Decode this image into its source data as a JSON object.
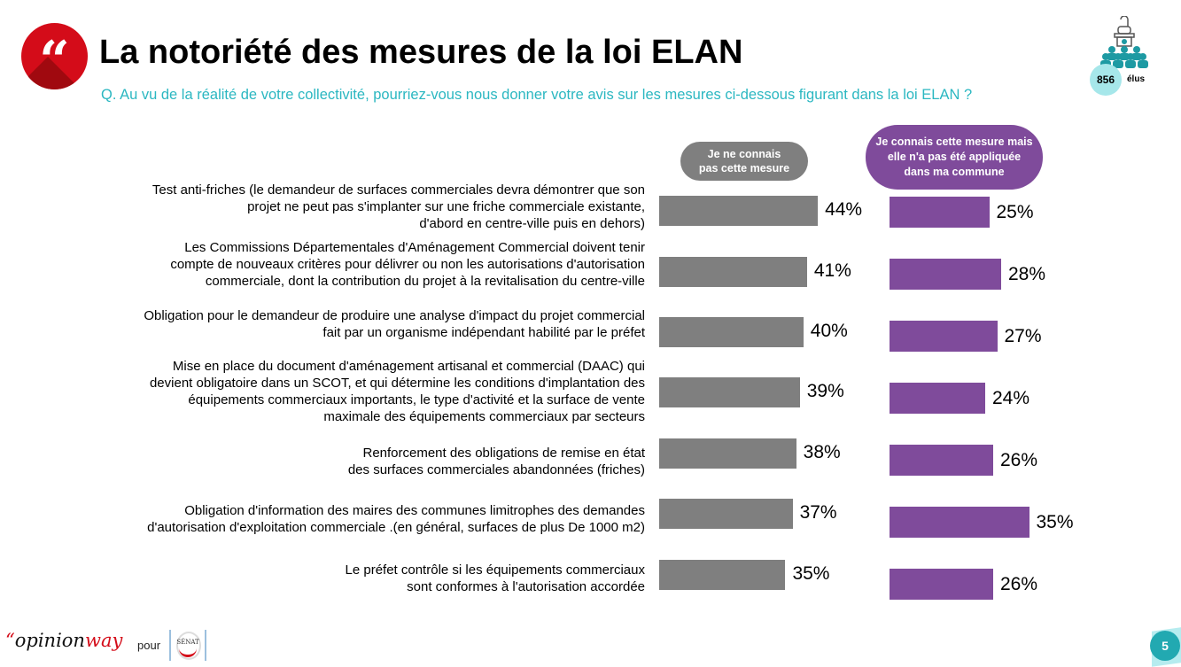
{
  "header": {
    "title": "La notoriété des mesures de la loi ELAN",
    "quote_glyph": "“",
    "subtitle": "Q. Au vu de la réalité de votre collectivité, pourriez-vous nous donner votre avis sur les mesures ci-dessous figurant dans la loi ELAN ?",
    "sample_size": "856",
    "sample_label": "élus"
  },
  "colors": {
    "accent_red": "#d40c19",
    "accent_teal": "#2bb7c1",
    "series_gray": "#7f7f7f",
    "series_purple": "#7f4b9b"
  },
  "chart_data": {
    "type": "bar",
    "orientation": "horizontal",
    "title": "La notoriété des mesures de la loi ELAN",
    "categories": [
      "Test anti-friches (le demandeur de surfaces commerciales devra démontrer que son projet ne peut pas s'implanter sur une friche commerciale existante, d'abord en centre-ville puis en dehors)",
      "Les Commissions Départementales d'Aménagement Commercial doivent tenir compte de nouveaux critères pour délivrer ou non les autorisations d'autorisation commerciale, dont la contribution du projet à la revitalisation du centre-ville",
      "Obligation pour le demandeur de produire une analyse d'impact du projet commercial fait par un organisme indépendant habilité par le préfet",
      "Mise en place du document d'aménagement artisanal et commercial (DAAC) qui devient obligatoire dans un SCOT, et qui détermine les conditions d'implantation des équipements commerciaux importants, le type d'activité et la surface de vente maximale des équipements commerciaux par secteurs",
      "Renforcement des obligations de remise en état des surfaces commerciales abandonnées (friches)",
      "Obligation d'information des maires des communes limitrophes des demandes d'autorisation d'exploitation commerciale .(en général, surfaces de plus De 1000 m2)",
      "Le préfet contrôle si les équipements commerciaux sont conformes à l'autorisation accordée"
    ],
    "category_lines": [
      [
        "Test anti-friches (le demandeur de surfaces commerciales devra démontrer que son",
        "projet ne peut pas s'implanter sur une friche commerciale existante,",
        "d'abord en centre-ville puis en dehors)"
      ],
      [
        "Les Commissions Départementales d'Aménagement Commercial doivent tenir",
        "compte de nouveaux critères pour délivrer ou non les autorisations d'autorisation",
        "commerciale, dont la contribution du projet à la revitalisation du centre-ville"
      ],
      [
        "Obligation pour le demandeur de produire une analyse d'impact du projet commercial",
        "fait par un organisme indépendant habilité par le préfet"
      ],
      [
        "Mise en place du document d'aménagement artisanal et commercial (DAAC) qui",
        "devient obligatoire dans un SCOT, et qui détermine les conditions d'implantation des",
        "équipements commerciaux importants, le type d'activité et la surface de vente",
        "maximale des équipements commerciaux par secteurs"
      ],
      [
        "Renforcement des obligations de remise en état",
        "des surfaces commerciales abandonnées (friches)"
      ],
      [
        "Obligation d'information des maires des communes limitrophes des demandes",
        "d'autorisation d'exploitation commerciale .(en général, surfaces de plus De 1000 m2)"
      ],
      [
        "Le préfet contrôle si les équipements commerciaux",
        "sont conformes à l'autorisation accordée"
      ]
    ],
    "series": [
      {
        "name": "Je ne connais pas cette mesure",
        "values": [
          44,
          41,
          40,
          39,
          38,
          37,
          35
        ],
        "color": "#7f7f7f"
      },
      {
        "name": "Je connais cette mesure mais elle n'a pas été appliquée dans ma commune",
        "values": [
          25,
          28,
          27,
          24,
          26,
          35,
          26
        ],
        "color": "#7f4b9b"
      }
    ],
    "value_suffix": "%",
    "xlabel": "",
    "ylabel": "",
    "xlim": [
      0,
      100
    ],
    "grid": false,
    "legend_position": "top"
  },
  "legend": {
    "gray_lines": [
      "Je ne connais",
      "pas cette mesure"
    ],
    "purple_lines": [
      "Je connais cette mesure mais",
      "elle n'a pas été appliquée",
      "dans ma commune"
    ]
  },
  "footer": {
    "brand_left": "opinion",
    "brand_right": "way",
    "pour": "pour",
    "senat": "SÉNAT",
    "page_number": "5"
  }
}
